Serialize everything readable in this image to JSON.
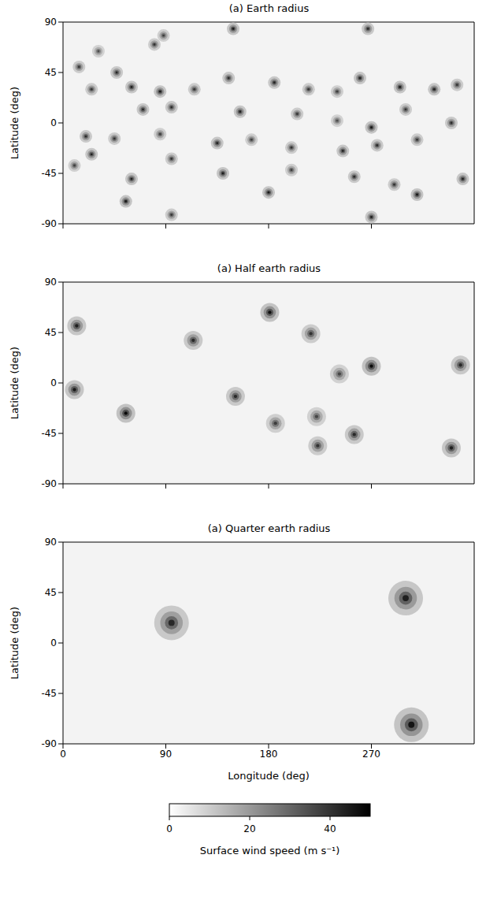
{
  "chart_data": [
    {
      "type": "scatter",
      "title": "(a) Earth radius",
      "ylabel": "Latitude (deg)",
      "tick_labels": "y",
      "x": [
        149,
        267,
        88,
        80,
        31,
        14,
        47,
        25,
        60,
        85,
        115,
        145,
        185,
        215,
        240,
        260,
        295,
        325,
        345,
        70,
        95,
        155,
        205,
        240,
        270,
        300,
        340,
        20,
        45,
        85,
        135,
        165,
        200,
        245,
        275,
        310,
        10,
        60,
        95,
        140,
        200,
        255,
        290,
        350,
        25,
        55,
        95,
        180,
        270,
        310
      ],
      "y": [
        84,
        84,
        78,
        70,
        64,
        50,
        45,
        30,
        32,
        28,
        30,
        40,
        36,
        30,
        28,
        40,
        32,
        30,
        34,
        12,
        14,
        10,
        8,
        2,
        -4,
        12,
        0,
        -12,
        -14,
        -10,
        -18,
        -15,
        -22,
        -25,
        -20,
        -15,
        -38,
        -50,
        -32,
        -45,
        -42,
        -48,
        -55,
        -50,
        -28,
        -70,
        -82,
        -62,
        -84,
        -64
      ],
      "values": [
        45,
        42,
        38,
        40,
        35,
        40,
        42,
        40,
        44,
        45,
        40,
        42,
        43,
        40,
        38,
        44,
        45,
        44,
        40,
        43,
        42,
        44,
        40,
        35,
        46,
        40,
        42,
        42,
        40,
        38,
        44,
        38,
        40,
        43,
        42,
        40,
        38,
        44,
        40,
        45,
        38,
        42,
        40,
        44,
        44,
        46,
        40,
        45,
        44,
        46
      ],
      "xlim": [
        0,
        360
      ],
      "ylim": [
        -90,
        90
      ],
      "xticks": [
        0,
        90,
        180,
        270
      ],
      "yticks": [
        -90,
        -45,
        0,
        45,
        90
      ]
    },
    {
      "type": "scatter",
      "title": "(a) Half earth radius",
      "ylabel": "Latitude (deg)",
      "tick_labels": "y",
      "x": [
        12,
        10,
        55,
        181,
        114,
        217,
        270,
        242,
        151,
        186,
        222,
        223,
        255,
        340,
        348
      ],
      "y": [
        51,
        -6,
        -27,
        63,
        38,
        44,
        15,
        8,
        -12,
        -36,
        -30,
        -56,
        -46,
        -58,
        16
      ],
      "values": [
        44,
        45,
        48,
        47,
        42,
        40,
        48,
        36,
        42,
        38,
        36,
        40,
        42,
        44,
        42
      ],
      "xlim": [
        0,
        360
      ],
      "ylim": [
        -90,
        90
      ],
      "xticks": [
        0,
        90,
        180,
        270
      ],
      "yticks": [
        -90,
        -45,
        0,
        45,
        90
      ]
    },
    {
      "type": "scatter",
      "title": "(a) Quarter earth radius",
      "ylabel": "Latitude (deg)",
      "xlabel": "Longitude (deg)",
      "x": [
        95,
        300,
        305
      ],
      "y": [
        18,
        40,
        -73
      ],
      "values": [
        42,
        44,
        46
      ],
      "xlim": [
        0,
        360
      ],
      "ylim": [
        -90,
        90
      ],
      "xticks": [
        0,
        90,
        180,
        270
      ],
      "yticks": [
        -90,
        -45,
        0,
        45,
        90
      ]
    }
  ],
  "colorbar": {
    "label": "Surface wind speed (m s⁻¹)",
    "range": [
      0,
      50
    ],
    "ticks": [
      0,
      20,
      40
    ]
  }
}
